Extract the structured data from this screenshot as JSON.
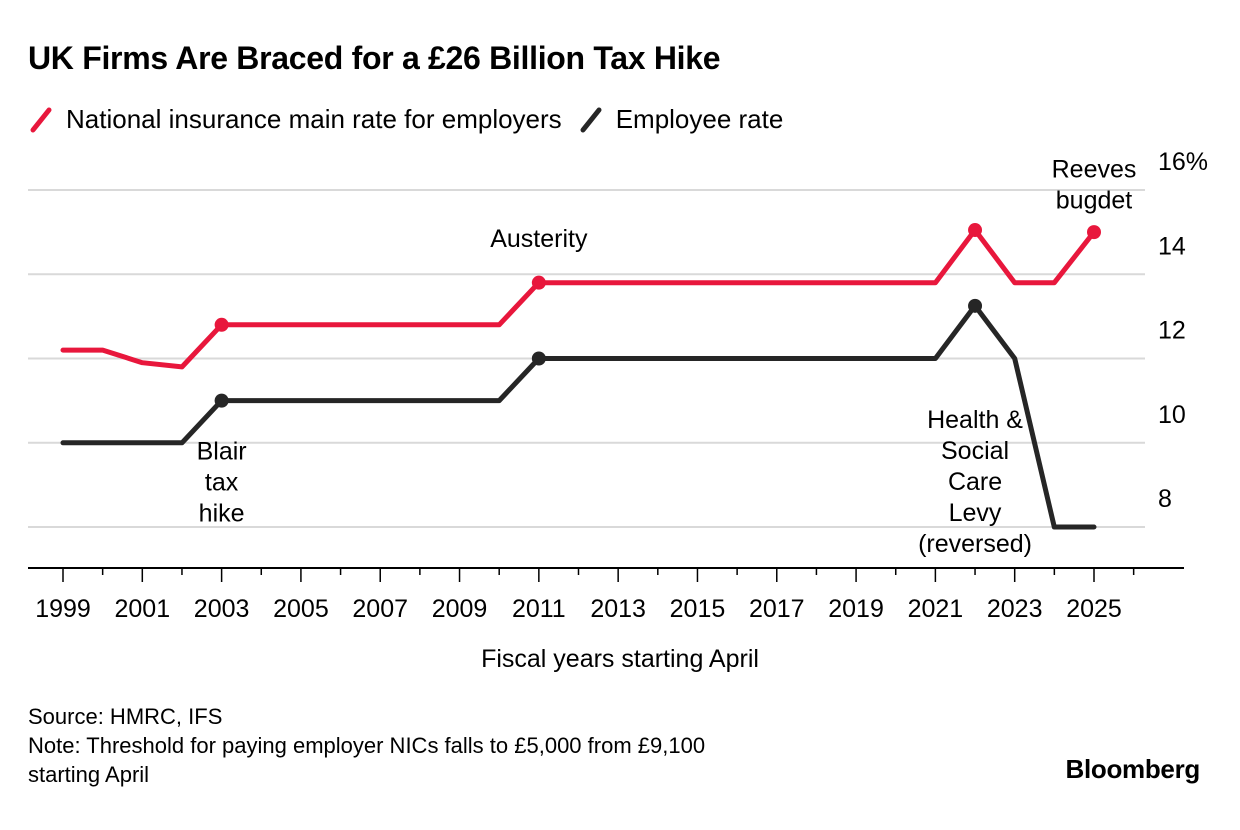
{
  "chart_data": {
    "type": "line",
    "title": "UK Firms Are Braced for a £26 Billion Tax Hike",
    "xlabel": "Fiscal years starting April",
    "ylabel": "",
    "y_unit_suffix": "%",
    "ylim": [
      7,
      16
    ],
    "y_ticks": [
      8,
      10,
      12,
      14,
      16
    ],
    "x_ticks": [
      1999,
      2001,
      2003,
      2005,
      2007,
      2009,
      2011,
      2013,
      2015,
      2017,
      2019,
      2021,
      2023,
      2025
    ],
    "x": [
      1999,
      2000,
      2001,
      2002,
      2003,
      2004,
      2005,
      2006,
      2007,
      2008,
      2009,
      2010,
      2011,
      2012,
      2013,
      2014,
      2015,
      2016,
      2017,
      2018,
      2019,
      2020,
      2021,
      2022,
      2023,
      2024,
      2025
    ],
    "series": [
      {
        "name": "National insurance main rate for employers",
        "color": "#e8173c",
        "values": [
          12.2,
          12.2,
          11.9,
          11.8,
          12.8,
          12.8,
          12.8,
          12.8,
          12.8,
          12.8,
          12.8,
          12.8,
          13.8,
          13.8,
          13.8,
          13.8,
          13.8,
          13.8,
          13.8,
          13.8,
          13.8,
          13.8,
          13.8,
          15.05,
          13.8,
          13.8,
          15.0
        ],
        "markers": [
          2003,
          2011,
          2022,
          2025
        ]
      },
      {
        "name": "Employee rate",
        "color": "#262626",
        "values": [
          10,
          10,
          10,
          10,
          11,
          11,
          11,
          11,
          11,
          11,
          11,
          11,
          12,
          12,
          12,
          12,
          12,
          12,
          12,
          12,
          12,
          12,
          12,
          13.25,
          12,
          8,
          8
        ],
        "markers": [
          2003,
          2011,
          2022
        ]
      }
    ],
    "annotations": [
      {
        "lines": [
          "Blair",
          "tax",
          "hike"
        ],
        "x": 2003,
        "y": 9.6
      },
      {
        "lines": [
          "Austerity"
        ],
        "x": 2011,
        "y": 14.65
      },
      {
        "lines": [
          "Health &",
          "Social",
          "Care",
          "Levy",
          "(reversed)"
        ],
        "x": 2022,
        "y": 10.35
      },
      {
        "lines": [
          "Reeves",
          "bugdet"
        ],
        "x": 2025,
        "y": 16.3
      }
    ]
  },
  "legend": {
    "items": [
      {
        "label": "National insurance main rate for employers",
        "color": "#e8173c"
      },
      {
        "label": "Employee rate",
        "color": "#262626"
      }
    ]
  },
  "footer": {
    "source": "Source: HMRC, IFS",
    "note_line1": "Note: Threshold for paying employer NICs falls to £5,000 from £9,100",
    "note_line2": "starting April",
    "brand": "Bloomberg"
  }
}
